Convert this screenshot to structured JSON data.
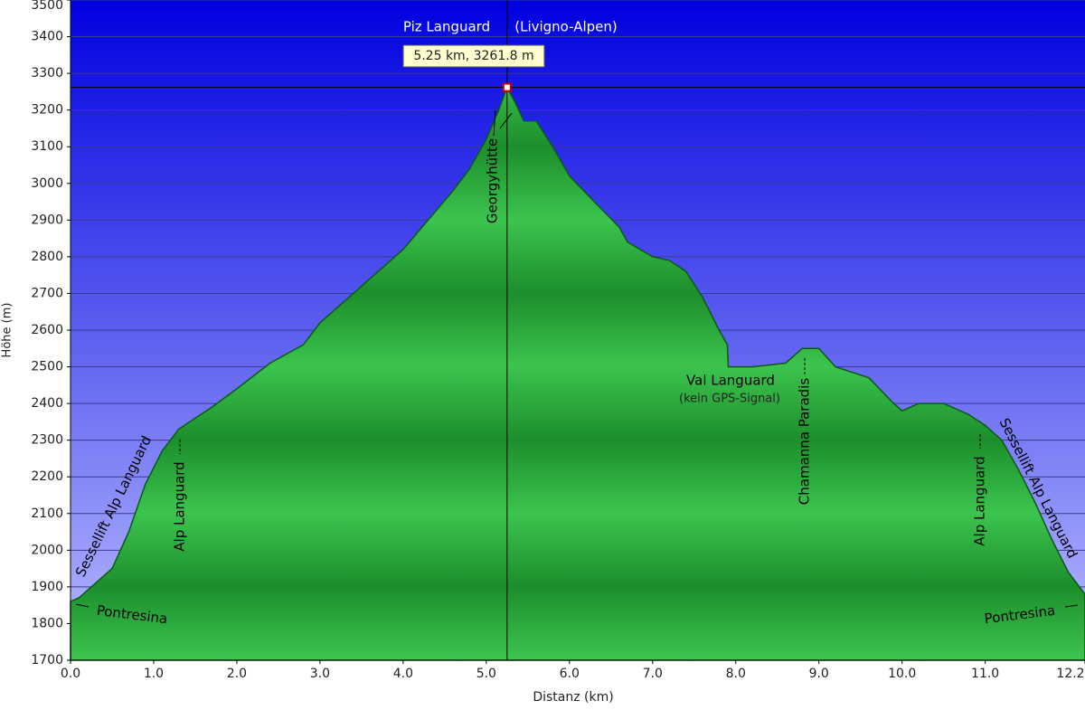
{
  "chart_data": {
    "type": "area",
    "x_label": "Distanz  (km)",
    "y_label": "Höhe (m)",
    "xlim": [
      0,
      12.2
    ],
    "ylim": [
      1700,
      3500
    ],
    "xticks": [
      {
        "value": 0,
        "label": "0.0"
      },
      {
        "value": 1,
        "label": "1.0"
      },
      {
        "value": 2,
        "label": "2.0"
      },
      {
        "value": 3,
        "label": "3.0"
      },
      {
        "value": 4,
        "label": "4.0"
      },
      {
        "value": 5,
        "label": "5.0"
      },
      {
        "value": 6,
        "label": "6.0"
      },
      {
        "value": 7,
        "label": "7.0"
      },
      {
        "value": 8,
        "label": "8.0"
      },
      {
        "value": 9,
        "label": "9.0"
      },
      {
        "value": 10,
        "label": "10.0"
      },
      {
        "value": 11,
        "label": "11.0"
      },
      12.2
    ],
    "yticks": [
      1700,
      1800,
      1900,
      2000,
      2100,
      2200,
      2300,
      2400,
      2500,
      2600,
      2700,
      2800,
      2900,
      3000,
      3100,
      3200,
      3300,
      3400,
      3500
    ],
    "grid": true,
    "color": "#2aa83a",
    "x": [
      0,
      0.1,
      0.3,
      0.5,
      0.7,
      0.9,
      1.1,
      1.3,
      1.5,
      1.7,
      2.0,
      2.4,
      2.8,
      3.0,
      3.3,
      3.6,
      4.0,
      4.3,
      4.6,
      4.8,
      5.0,
      5.15,
      5.25,
      5.35,
      5.45,
      5.6,
      5.8,
      6.0,
      6.3,
      6.6,
      6.7,
      7.0,
      7.2,
      7.4,
      7.6,
      7.8,
      7.9,
      7.91,
      8.2,
      8.6,
      8.8,
      9.0,
      9.2,
      9.6,
      9.9,
      10.0,
      10.2,
      10.5,
      10.8,
      11.0,
      11.2,
      11.4,
      11.6,
      11.8,
      12.0,
      12.2
    ],
    "values": [
      1860,
      1870,
      1910,
      1950,
      2050,
      2180,
      2270,
      2330,
      2360,
      2390,
      2440,
      2510,
      2560,
      2620,
      2680,
      2740,
      2820,
      2900,
      2980,
      3040,
      3120,
      3200,
      3261.8,
      3220,
      3170,
      3170,
      3100,
      3020,
      2950,
      2880,
      2840,
      2800,
      2790,
      2760,
      2690,
      2600,
      2560,
      2500,
      2500,
      2510,
      2550,
      2550,
      2500,
      2470,
      2400,
      2380,
      2400,
      2400,
      2370,
      2340,
      2300,
      2220,
      2130,
      2030,
      1940,
      1880
    ],
    "cursor": {
      "x": 5.25,
      "y": 3261.8,
      "label": "5.25 km, 3261.8 m"
    },
    "annotations": {
      "peak": "Piz Languard",
      "region": "(Livigno-Alpen)",
      "hut": "Georgyhütte",
      "valley": "Val Languard",
      "valley_note": "(kein GPS-Signal)",
      "paradis": "Chamanna Paradis",
      "lift_left": "Sessellift Alp Languard",
      "lift_right": "Sessellift Alp Languard",
      "alp_left": "Alp Languard",
      "alp_right": "Alp Languard",
      "town_left": "Pontresina",
      "town_right": "Pontresina"
    }
  }
}
